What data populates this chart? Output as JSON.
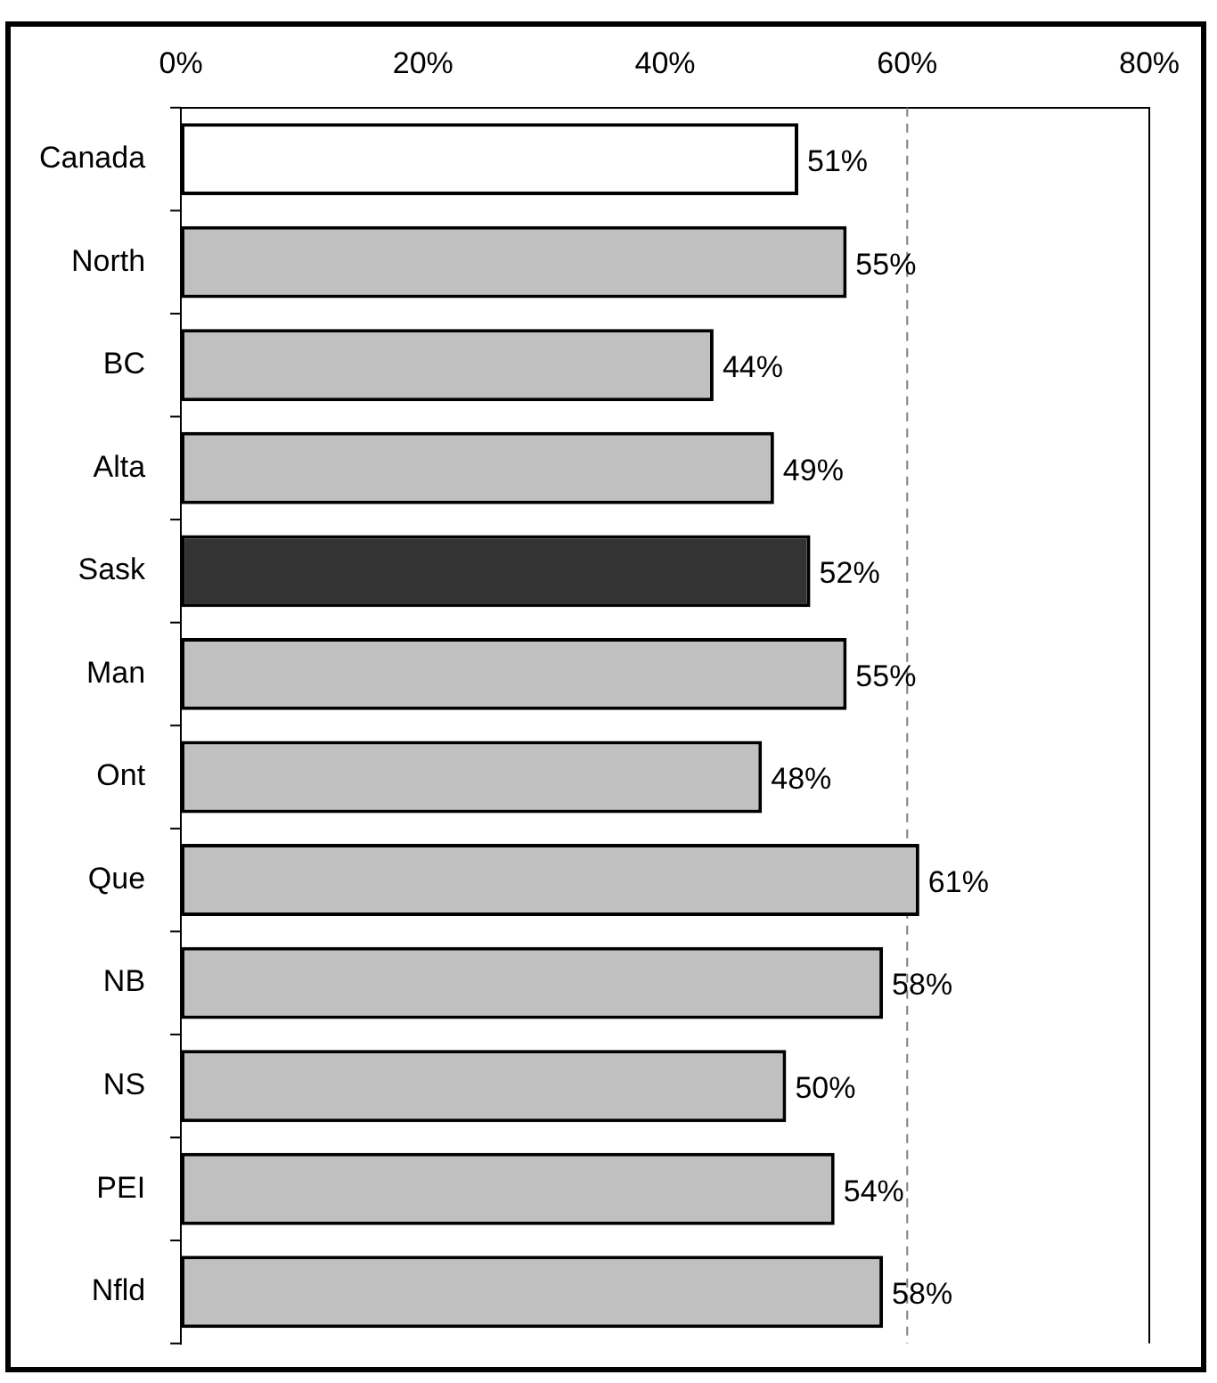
{
  "chart_data": {
    "type": "bar",
    "orientation": "horizontal",
    "categories": [
      "Canada",
      "North",
      "BC",
      "Alta",
      "Sask",
      "Man",
      "Ont",
      "Que",
      "NB",
      "NS",
      "PEI",
      "Nfld"
    ],
    "values": [
      51,
      55,
      44,
      49,
      52,
      55,
      48,
      61,
      58,
      50,
      54,
      58
    ],
    "colors": [
      "#ffffff",
      "#c0c0c0",
      "#c0c0c0",
      "#c0c0c0",
      "#333333",
      "#c0c0c0",
      "#c0c0c0",
      "#c0c0c0",
      "#c0c0c0",
      "#c0c0c0",
      "#c0c0c0",
      "#c0c0c0"
    ],
    "value_labels": [
      "51%",
      "55%",
      "44%",
      "49%",
      "52%",
      "55%",
      "48%",
      "61%",
      "58%",
      "50%",
      "54%",
      "58%"
    ],
    "xlim": [
      0,
      80
    ],
    "xticks": [
      {
        "value": 0,
        "label": "0%"
      },
      {
        "value": 20,
        "label": "20%"
      },
      {
        "value": 40,
        "label": "40%"
      },
      {
        "value": 60,
        "label": "60%"
      },
      {
        "value": 80,
        "label": "80%"
      }
    ],
    "ref_lines": [
      {
        "axis": "x",
        "value": 60,
        "color": "#808080",
        "line_style": "dashed"
      }
    ],
    "grid": false,
    "legend": false
  }
}
